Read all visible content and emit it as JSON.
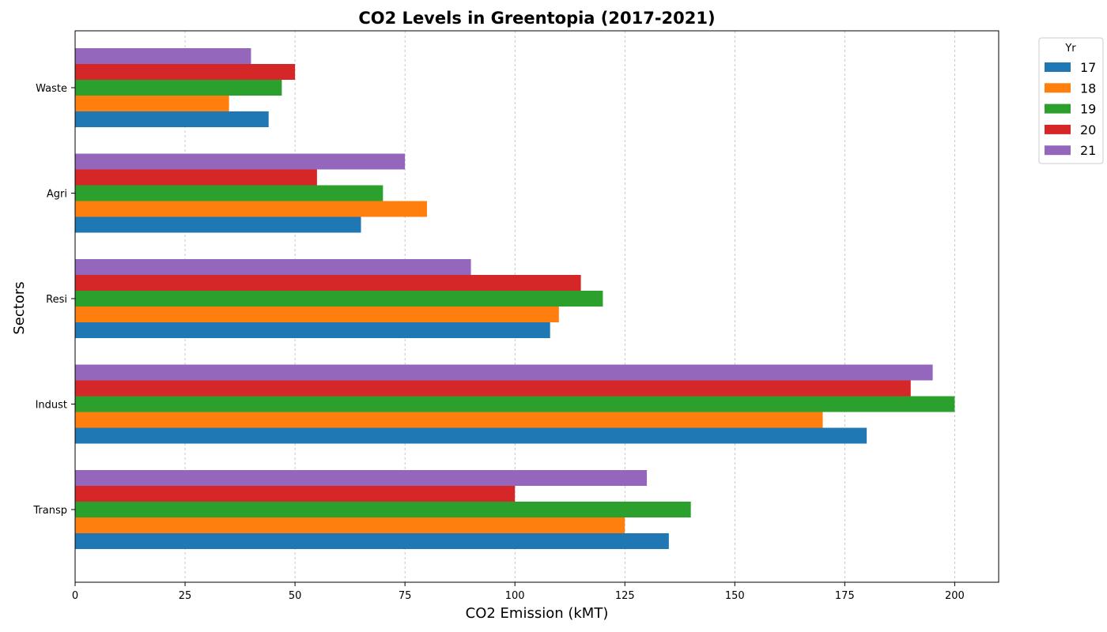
{
  "chart_data": {
    "type": "bar",
    "orientation": "horizontal",
    "title": "CO2 Levels in Greentopia (2017-2021)",
    "xlabel": "CO2 Emission (kMT)",
    "ylabel": "Sectors",
    "xlim": [
      0,
      210
    ],
    "xticks": [
      0,
      25,
      50,
      75,
      100,
      125,
      150,
      175,
      200
    ],
    "grid": "x-dashed",
    "categories": [
      "Transp",
      "Indust",
      "Resi",
      "Agri",
      "Waste"
    ],
    "legend_title": "Yr",
    "legend_position": "outside-top-right",
    "series": [
      {
        "name": "17",
        "color": "#1f77b4",
        "values": [
          135,
          180,
          108,
          65,
          44
        ]
      },
      {
        "name": "18",
        "color": "#ff7f0e",
        "values": [
          125,
          170,
          110,
          80,
          35
        ]
      },
      {
        "name": "19",
        "color": "#2ca02c",
        "values": [
          140,
          200,
          120,
          70,
          47
        ]
      },
      {
        "name": "20",
        "color": "#d62728",
        "values": [
          100,
          190,
          115,
          55,
          50
        ]
      },
      {
        "name": "21",
        "color": "#9467bd",
        "values": [
          130,
          195,
          90,
          75,
          40
        ]
      }
    ]
  }
}
